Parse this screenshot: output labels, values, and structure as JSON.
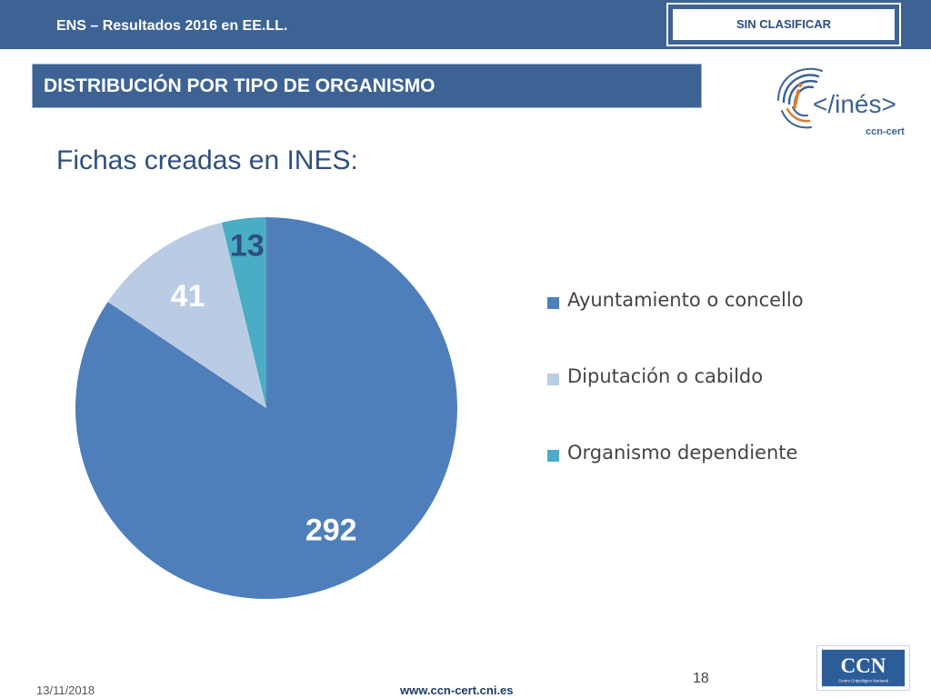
{
  "header": {
    "doc_title": "ENS – Resultados 2016 en EE.LL.",
    "classification": "SIN CLASIFICAR"
  },
  "section": {
    "title": "DISTRIBUCIÓN POR TIPO DE ORGANISMO"
  },
  "logo": {
    "text": "</inés>",
    "sub": "ccn-cert"
  },
  "subtitle": "Fichas creadas en INES:",
  "chart_data": {
    "type": "pie",
    "categories": [
      "Ayuntamiento o concello",
      "Diputación o cabildo",
      "Organismo dependiente"
    ],
    "values": [
      292,
      41,
      13
    ],
    "data_labels": [
      "292",
      "41",
      "13"
    ],
    "colors": [
      "#4e7fbb",
      "#b9cce4",
      "#4aacc5"
    ],
    "label_colors": [
      "#ffffff",
      "#ffffff",
      "#2f4f7f"
    ],
    "start_angle_deg": 0,
    "direction": "clockwise",
    "legend_position": "right"
  },
  "footer": {
    "date": "13/11/2018",
    "url": "www.ccn-cert.cni.es",
    "page": "18",
    "ccn_logo_text": "CCN",
    "ccn_logo_sub": "Centro Criptológico Nacional"
  }
}
